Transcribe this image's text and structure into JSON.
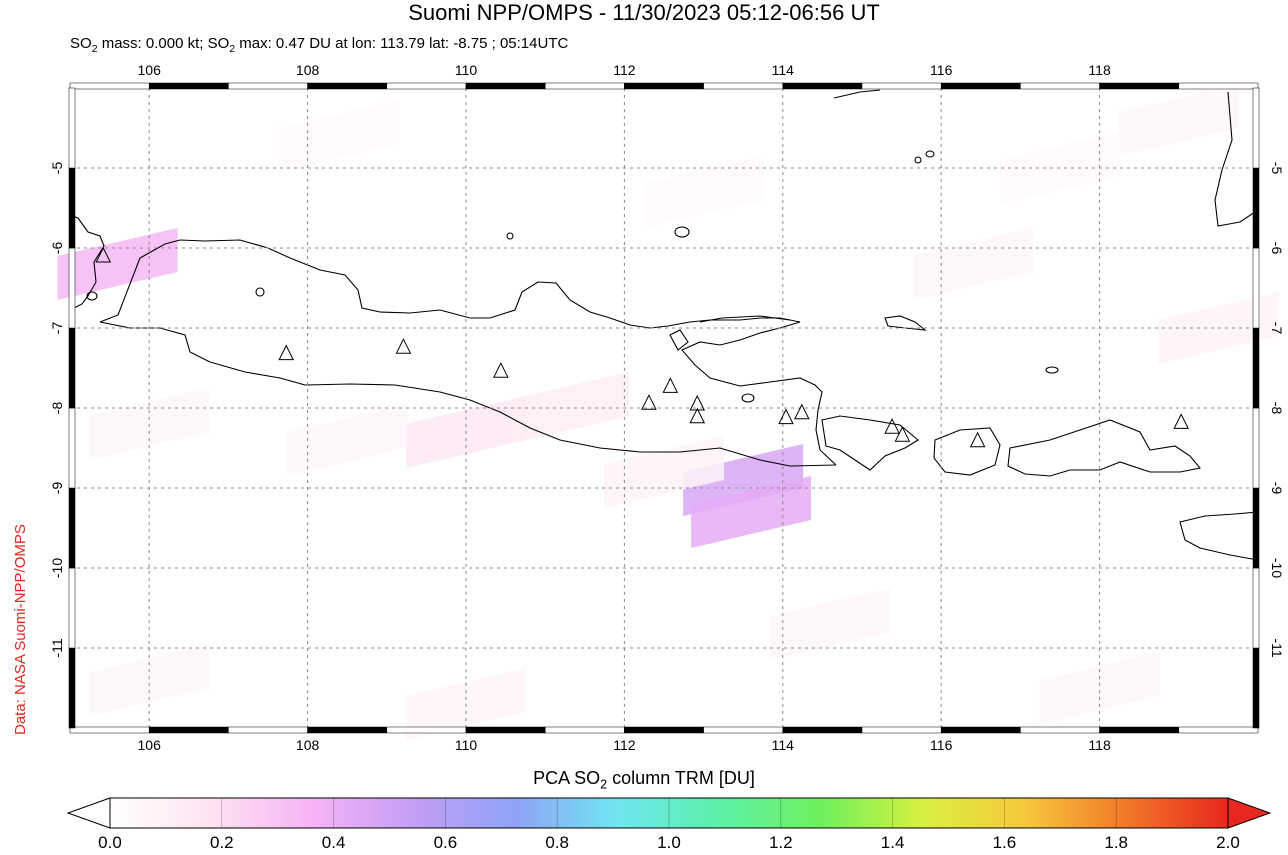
{
  "title": "Suomi NPP/OMPS - 11/30/2023 05:12-06:56 UT",
  "subtitle": {
    "mass_prefix": "SO",
    "mass_sub": "2",
    "mass_text": " mass: 0.000 kt; SO",
    "max_sub": "2",
    "max_text": " max: 0.47 DU at lon: 113.79 lat: -8.75 ; 05:14UTC"
  },
  "credit": "Data: NASA Suomi-NPP/OMPS",
  "colorbar": {
    "title_prefix": "PCA SO",
    "title_sub": "2",
    "title_suffix": " column TRM [DU]",
    "ticks": [
      "0.0",
      "0.2",
      "0.4",
      "0.6",
      "0.8",
      "1.0",
      "1.2",
      "1.4",
      "1.6",
      "1.8",
      "2.0"
    ],
    "colors": [
      "#ffffff",
      "#fde3f0",
      "#f5b3f5",
      "#c29ef5",
      "#8fa3f5",
      "#6fe6f0",
      "#5cf0a8",
      "#6ef05c",
      "#d8f040",
      "#f5c83c",
      "#f07828",
      "#e8281e"
    ]
  },
  "map": {
    "lon_range": [
      105.0,
      120.0
    ],
    "lat_range": [
      -12.0,
      -4.0
    ],
    "lon_ticks": [
      "106",
      "108",
      "110",
      "112",
      "114",
      "116",
      "118"
    ],
    "lat_ticks": [
      "-5",
      "-6",
      "-7",
      "-8",
      "-9",
      "-10",
      "-11"
    ],
    "grid": true
  },
  "chart_data": {
    "type": "heatmap",
    "title": "Suomi NPP/OMPS - 11/30/2023 05:12-06:56 UT",
    "xlabel": "",
    "ylabel": "",
    "xlim": [
      105.0,
      120.0
    ],
    "ylim": [
      -12.0,
      -4.0
    ],
    "max_value": 0.47,
    "max_lon": 113.79,
    "max_lat": -8.75,
    "pixels": [
      {
        "lon": 105.6,
        "lat": -6.2,
        "value": 0.35
      },
      {
        "lon": 113.5,
        "lat": -8.9,
        "value": 0.47
      },
      {
        "lon": 113.6,
        "lat": -9.3,
        "value": 0.42
      },
      {
        "lon": 110.0,
        "lat": -8.3,
        "value": 0.15
      },
      {
        "lon": 111.3,
        "lat": -8.0,
        "value": 0.12
      },
      {
        "lon": 112.5,
        "lat": -8.8,
        "value": 0.08
      },
      {
        "lon": 108.5,
        "lat": -8.4,
        "value": 0.05
      },
      {
        "lon": 106.0,
        "lat": -8.2,
        "value": 0.06
      },
      {
        "lon": 116.4,
        "lat": -6.2,
        "value": 0.06
      },
      {
        "lon": 119.5,
        "lat": -7.0,
        "value": 0.08
      },
      {
        "lon": 118.0,
        "lat": -11.5,
        "value": 0.05
      },
      {
        "lon": 110.0,
        "lat": -11.7,
        "value": 0.07
      },
      {
        "lon": 106.0,
        "lat": -11.4,
        "value": 0.05
      },
      {
        "lon": 114.6,
        "lat": -10.7,
        "value": 0.05
      },
      {
        "lon": 117.5,
        "lat": -5.0,
        "value": 0.04
      },
      {
        "lon": 119.0,
        "lat": -4.4,
        "value": 0.05
      },
      {
        "lon": 113.0,
        "lat": -5.3,
        "value": 0.04
      },
      {
        "lon": 108.4,
        "lat": -4.6,
        "value": 0.03
      }
    ],
    "volcanoes": [
      {
        "lon": 105.42,
        "lat": -6.1
      },
      {
        "lon": 107.73,
        "lat": -7.32
      },
      {
        "lon": 109.21,
        "lat": -7.24
      },
      {
        "lon": 110.44,
        "lat": -7.54
      },
      {
        "lon": 112.31,
        "lat": -7.94
      },
      {
        "lon": 112.58,
        "lat": -7.73
      },
      {
        "lon": 112.92,
        "lat": -7.95
      },
      {
        "lon": 112.92,
        "lat": -8.11
      },
      {
        "lon": 114.04,
        "lat": -8.12
      },
      {
        "lon": 114.24,
        "lat": -8.06
      },
      {
        "lon": 115.38,
        "lat": -8.24
      },
      {
        "lon": 115.51,
        "lat": -8.34
      },
      {
        "lon": 116.46,
        "lat": -8.41
      },
      {
        "lon": 119.03,
        "lat": -8.18
      }
    ]
  }
}
